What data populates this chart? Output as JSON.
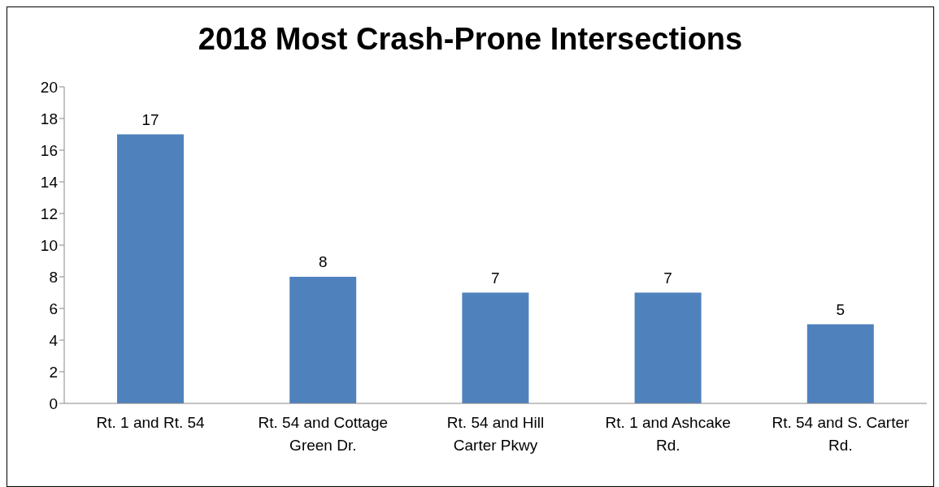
{
  "chart_data": {
    "type": "bar",
    "title": "2018 Most Crash-Prone Intersections",
    "categories": [
      "Rt. 1 and Rt. 54",
      "Rt. 54 and Cottage Green Dr.",
      "Rt. 54 and Hill Carter Pkwy",
      "Rt. 1 and Ashcake Rd.",
      "Rt. 54 and S. Carter Rd."
    ],
    "values": [
      17,
      8,
      7,
      7,
      5
    ],
    "color": "#4f81bd",
    "ylim": [
      0,
      20
    ],
    "yticks": [
      0,
      2,
      4,
      6,
      8,
      10,
      12,
      14,
      16,
      18,
      20
    ],
    "grid": false,
    "data_labels": true,
    "legend": false
  }
}
